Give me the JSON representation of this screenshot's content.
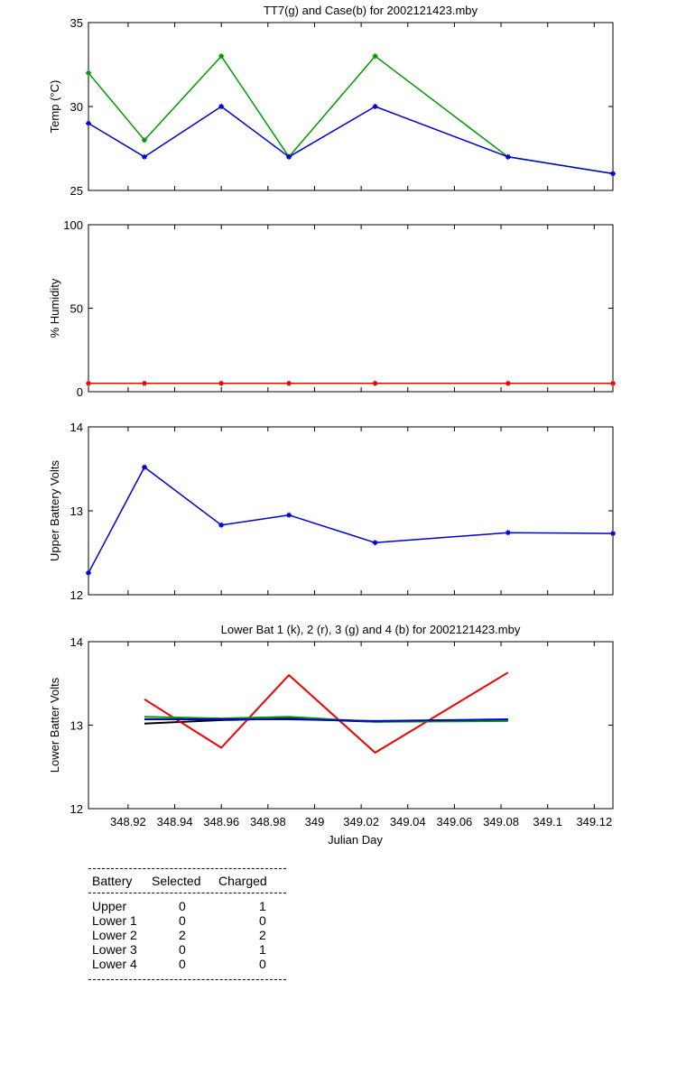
{
  "x_axis": {
    "label": "Julian Day",
    "range": [
      348.903,
      349.128
    ],
    "ticks": [
      348.92,
      348.94,
      348.96,
      348.98,
      349,
      349.02,
      349.04,
      349.06,
      349.08,
      349.1,
      349.12
    ],
    "tick_labels": [
      "348.92",
      "348.94",
      "348.96",
      "348.98",
      "349",
      "349.02",
      "349.04",
      "349.06",
      "349.08",
      "349.1",
      "349.12"
    ]
  },
  "chart_data": [
    {
      "type": "line",
      "title": "TT7(g) and Case(b) for 2002121423.mby",
      "xlabel": "",
      "ylabel": "Temp  (°C)",
      "ylim": [
        25,
        35
      ],
      "yticks": [
        25,
        30,
        35
      ],
      "ytick_labels": [
        "25",
        "30",
        "35"
      ],
      "x": [
        348.903,
        348.927,
        348.96,
        348.989,
        349.026,
        349.083,
        349.128
      ],
      "series": [
        {
          "color": "#009900",
          "values": [
            32,
            28,
            33,
            27,
            33,
            27,
            26
          ]
        },
        {
          "color": "#0000cc",
          "values": [
            29,
            27,
            30,
            27,
            30,
            27,
            26
          ]
        }
      ]
    },
    {
      "type": "line",
      "title": "",
      "xlabel": "",
      "ylabel": "% Humidity",
      "ylim": [
        0,
        100
      ],
      "yticks": [
        0,
        50,
        100
      ],
      "ytick_labels": [
        "0",
        "50",
        "100"
      ],
      "x": [
        348.903,
        348.927,
        348.96,
        348.989,
        349.026,
        349.083,
        349.128
      ],
      "series": [
        {
          "color": "#ee0000",
          "values": [
            5,
            5,
            5,
            5,
            5,
            5,
            5
          ]
        }
      ]
    },
    {
      "type": "line",
      "title": "",
      "xlabel": "",
      "ylabel": "Upper Battery Volts",
      "ylim": [
        12,
        14
      ],
      "yticks": [
        12,
        13,
        14
      ],
      "ytick_labels": [
        "12",
        "13",
        "14"
      ],
      "x": [
        348.903,
        348.927,
        348.96,
        348.989,
        349.026,
        349.083,
        349.128
      ],
      "series": [
        {
          "color": "#0000cc",
          "values": [
            12.26,
            13.52,
            12.83,
            12.95,
            12.62,
            12.74,
            12.73
          ]
        }
      ]
    },
    {
      "type": "line",
      "title": "Lower Bat 1 (k), 2 (r), 3 (g) and 4 (b) for 2002121423.mby",
      "xlabel": "Julian Day",
      "ylabel": "Lower Batter Volts",
      "ylim": [
        12,
        14
      ],
      "yticks": [
        12,
        13,
        14
      ],
      "ytick_labels": [
        "12",
        "13",
        "14"
      ],
      "series": [
        {
          "color": "#000000",
          "x": [
            348.927,
            348.96,
            348.989,
            349.026,
            349.083
          ],
          "values": [
            13.02,
            13.06,
            13.08,
            13.04,
            13.06
          ]
        },
        {
          "color": "#ee0000",
          "x": [
            348.927,
            348.96,
            348.989,
            349.026,
            349.083
          ],
          "values": [
            13.31,
            12.73,
            13.6,
            12.67,
            13.63
          ]
        },
        {
          "color": "#009900",
          "x": [
            348.927,
            348.96,
            348.989,
            349.026,
            349.083
          ],
          "values": [
            13.1,
            13.08,
            13.1,
            13.04,
            13.05
          ]
        },
        {
          "color": "#0000cc",
          "x": [
            348.927,
            348.96,
            348.989,
            349.026,
            349.083
          ],
          "values": [
            13.07,
            13.07,
            13.07,
            13.05,
            13.07
          ]
        }
      ]
    }
  ],
  "battery_table": {
    "headers": [
      "Battery",
      "Selected",
      "Charged"
    ],
    "rows": [
      {
        "battery": "Upper",
        "selected": "0",
        "charged": "1"
      },
      {
        "battery": "Lower 1",
        "selected": "0",
        "charged": "0"
      },
      {
        "battery": "Lower 2",
        "selected": "2",
        "charged": "2"
      },
      {
        "battery": "Lower 3",
        "selected": "0",
        "charged": "1"
      },
      {
        "battery": "Lower 4",
        "selected": "0",
        "charged": "0"
      }
    ]
  }
}
